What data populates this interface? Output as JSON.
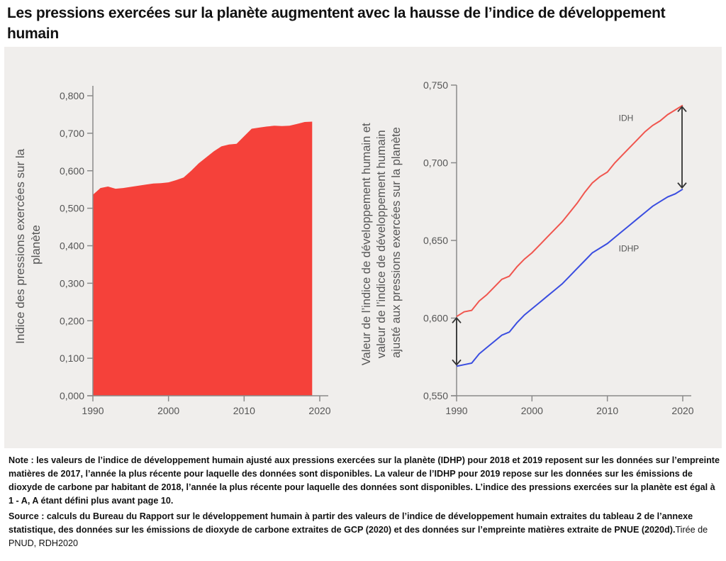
{
  "title": "Les pressions exercées sur la planète augmentent avec la hausse de l’indice de développement humain",
  "notes": {
    "note": "Note : les valeurs de l’indice de développement humain ajusté aux pressions exercées sur la planète (IDHP) pour 2018 et 2019 reposent sur les données sur l’empreinte matières de 2017, l’année la plus récente pour laquelle des données sont disponibles. La valeur de l’IDHP pour 2019 repose sur les données sur les émissions de dioxyde de carbone par habitant de 2018, l’année la plus récente pour laquelle des données sont disponibles. L’indice des pressions exercées sur la planète est égal à 1 - A, A étant défini plus avant page 10.",
    "source": "Source : calculs du Bureau du Rapport sur le développement humain à partir des valeurs de l’indice de développement humain extraites du tableau 2 de l’annexe statistique, des données sur les émissions de dioxyde de carbone extraites de GCP (2020) et des données sur l’empreinte matières extraite de PNUE (2020d).",
    "credit": "Tirée de PNUD, RDH2020"
  },
  "chart_data": [
    {
      "type": "area",
      "title": "",
      "xlabel": "",
      "ylabel": "Indice des pressions exercées sur la planète",
      "xlim": [
        1990,
        2020
      ],
      "ylim": [
        0,
        0.8
      ],
      "xticks": [
        "1990",
        "2000",
        "2010",
        "2020"
      ],
      "xtick_values": [
        1990,
        2000,
        2010,
        2020
      ],
      "yticks": [
        "0,000",
        "0,100",
        "0,200",
        "0,300",
        "0,400",
        "0,500",
        "0,600",
        "0,700",
        "0,800"
      ],
      "ytick_values": [
        0,
        0.1,
        0.2,
        0.3,
        0.4,
        0.5,
        0.6,
        0.7,
        0.8
      ],
      "color": "#f5413a",
      "x": [
        1990,
        1991,
        1992,
        1993,
        1994,
        1995,
        1996,
        1997,
        1998,
        1999,
        2000,
        2001,
        2002,
        2003,
        2004,
        2005,
        2006,
        2007,
        2008,
        2009,
        2010,
        2011,
        2012,
        2013,
        2014,
        2015,
        2016,
        2017,
        2018,
        2019
      ],
      "values": [
        0.536,
        0.554,
        0.558,
        0.552,
        0.554,
        0.557,
        0.56,
        0.563,
        0.566,
        0.567,
        0.569,
        0.575,
        0.582,
        0.6,
        0.62,
        0.636,
        0.652,
        0.665,
        0.67,
        0.672,
        0.692,
        0.712,
        0.715,
        0.718,
        0.72,
        0.719,
        0.72,
        0.725,
        0.73,
        0.731
      ]
    },
    {
      "type": "line",
      "title": "",
      "xlabel": "",
      "ylabel": "Valeur de l’indice de développement humain et valeur de l’indice de développement humain ajusté aux pressions exercées sur la planète",
      "xlim": [
        1990,
        2020
      ],
      "ylim": [
        0.55,
        0.75
      ],
      "xticks": [
        "1990",
        "2000",
        "2010",
        "2020"
      ],
      "xtick_values": [
        1990,
        2000,
        2010,
        2020
      ],
      "yticks": [
        "0,550",
        "0,600",
        "0,650",
        "0,700",
        "0,750"
      ],
      "ytick_values": [
        0.55,
        0.6,
        0.65,
        0.7,
        0.75
      ],
      "x": [
        1990,
        1991,
        1992,
        1993,
        1994,
        1995,
        1996,
        1997,
        1998,
        1999,
        2000,
        2001,
        2002,
        2003,
        2004,
        2005,
        2006,
        2007,
        2008,
        2009,
        2010,
        2011,
        2012,
        2013,
        2014,
        2015,
        2016,
        2017,
        2018,
        2019,
        2020
      ],
      "series": [
        {
          "name": "IDH",
          "color": "#f0554e",
          "values": [
            0.601,
            0.604,
            0.605,
            0.611,
            0.615,
            0.62,
            0.625,
            0.627,
            0.633,
            0.638,
            0.642,
            0.647,
            0.652,
            0.657,
            0.662,
            0.668,
            0.674,
            0.681,
            0.687,
            0.691,
            0.694,
            0.7,
            0.705,
            0.71,
            0.715,
            0.72,
            0.724,
            0.727,
            0.731,
            0.734,
            0.737
          ]
        },
        {
          "name": "IDHP",
          "color": "#3a4de0",
          "values": [
            0.569,
            0.57,
            0.571,
            0.577,
            0.581,
            0.585,
            0.589,
            0.591,
            0.597,
            0.602,
            0.606,
            0.61,
            0.614,
            0.618,
            0.622,
            0.627,
            0.632,
            0.637,
            0.642,
            0.645,
            0.648,
            0.652,
            0.656,
            0.66,
            0.664,
            0.668,
            0.672,
            0.675,
            0.678,
            0.68,
            0.683
          ]
        }
      ],
      "annotations": [
        "IDH",
        "IDHP"
      ]
    }
  ]
}
